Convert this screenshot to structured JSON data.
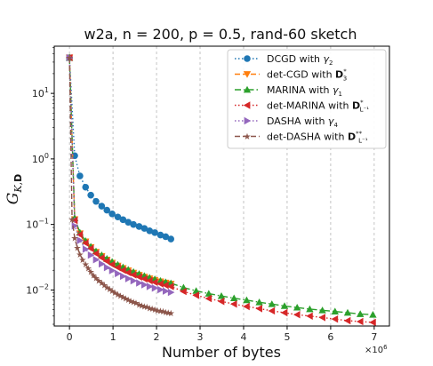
{
  "chart_data": {
    "type": "line",
    "title": "w2a, n = 200, p = 0.5, rand-60 sketch",
    "xlabel": "Number of bytes",
    "ylabel": "G_{K,D}",
    "x_multiplier_label": "×10^6",
    "x_range": [
      -0.35,
      7.35
    ],
    "y_range_log10": [
      -2.55,
      1.72
    ],
    "y_scale": "log",
    "grid": "vertical dashed at integer x",
    "x_ticks": [
      0,
      1,
      2,
      3,
      4,
      5,
      6,
      7
    ],
    "y_ticks": [
      {
        "value": 10,
        "label": "10^1"
      },
      {
        "value": 1,
        "label": "10^0"
      },
      {
        "value": 0.1,
        "label": "10^-1"
      },
      {
        "value": 0.01,
        "label": "10^-2"
      }
    ],
    "legend_position": "upper-right",
    "series": [
      {
        "name": "DCGD with γ2",
        "color": "#1f77b4",
        "linestyle": "dotted",
        "marker": "circle",
        "x": [
          0,
          0.12,
          0.24,
          0.37,
          0.49,
          0.61,
          0.74,
          0.86,
          0.98,
          1.11,
          1.23,
          1.35,
          1.47,
          1.6,
          1.72,
          1.84,
          1.96,
          2.09,
          2.21,
          2.33
        ],
        "y": [
          35,
          1.12,
          0.55,
          0.37,
          0.28,
          0.225,
          0.19,
          0.165,
          0.145,
          0.13,
          0.118,
          0.108,
          0.1,
          0.093,
          0.087,
          0.08,
          0.075,
          0.069,
          0.065,
          0.06
        ]
      },
      {
        "name": "det-CGD with D3*",
        "color": "#ff7f0e",
        "linestyle": "dashed",
        "marker": "triangle-down",
        "x": [
          0,
          0.12,
          0.24,
          0.37,
          0.49,
          0.61,
          0.74,
          0.86,
          0.98,
          1.11,
          1.23,
          1.35,
          1.47,
          1.6,
          1.72,
          1.84,
          1.96,
          2.09,
          2.21,
          2.33
        ],
        "y": [
          35,
          0.12,
          0.073,
          0.055,
          0.045,
          0.038,
          0.033,
          0.029,
          0.026,
          0.0235,
          0.0215,
          0.0198,
          0.0183,
          0.017,
          0.0159,
          0.015,
          0.0142,
          0.0135,
          0.0129,
          0.0124
        ]
      },
      {
        "name": "MARINA with γ1",
        "color": "#2ca02c",
        "linestyle": "dashdot",
        "marker": "triangle-up",
        "x": [
          0,
          0.12,
          0.24,
          0.37,
          0.49,
          0.61,
          0.74,
          0.86,
          0.98,
          1.11,
          1.23,
          1.35,
          1.47,
          1.6,
          1.72,
          1.84,
          1.96,
          2.09,
          2.21,
          2.33,
          2.62,
          2.91,
          3.2,
          3.49,
          3.78,
          4.07,
          4.36,
          4.65,
          4.94,
          5.23,
          5.52,
          5.81,
          6.1,
          6.39,
          6.68,
          6.97
        ],
        "y": [
          35,
          0.125,
          0.075,
          0.056,
          0.046,
          0.039,
          0.034,
          0.03,
          0.027,
          0.0243,
          0.0222,
          0.0204,
          0.0189,
          0.0176,
          0.0164,
          0.0154,
          0.0146,
          0.0138,
          0.0132,
          0.0127,
          0.0109,
          0.0097,
          0.0088,
          0.0081,
          0.0075,
          0.007,
          0.0065,
          0.0061,
          0.0057,
          0.0054,
          0.0051,
          0.0049,
          0.0047,
          0.0045,
          0.0043,
          0.0042
        ]
      },
      {
        "name": "det-MARINA with DL-1*",
        "color": "#d62728",
        "linestyle": "dotted",
        "marker": "triangle-left",
        "x": [
          0,
          0.12,
          0.24,
          0.37,
          0.49,
          0.61,
          0.74,
          0.86,
          0.98,
          1.11,
          1.23,
          1.35,
          1.47,
          1.6,
          1.72,
          1.84,
          1.96,
          2.09,
          2.21,
          2.33,
          2.62,
          2.91,
          3.2,
          3.49,
          3.78,
          4.07,
          4.36,
          4.65,
          4.94,
          5.23,
          5.52,
          5.81,
          6.1,
          6.39,
          6.68,
          6.97
        ],
        "y": [
          35,
          0.115,
          0.07,
          0.052,
          0.043,
          0.036,
          0.031,
          0.0275,
          0.0245,
          0.022,
          0.02,
          0.0184,
          0.017,
          0.0158,
          0.0148,
          0.0139,
          0.0131,
          0.0124,
          0.0118,
          0.0113,
          0.0095,
          0.0083,
          0.0074,
          0.0067,
          0.0061,
          0.0056,
          0.0052,
          0.0048,
          0.0045,
          0.0042,
          0.004,
          0.0038,
          0.0036,
          0.0034,
          0.0033,
          0.0032
        ]
      },
      {
        "name": "DASHA with γ4",
        "color": "#9467bd",
        "linestyle": "dotted",
        "marker": "triangle-right",
        "x": [
          0,
          0.12,
          0.24,
          0.37,
          0.49,
          0.61,
          0.74,
          0.86,
          0.98,
          1.11,
          1.23,
          1.35,
          1.47,
          1.6,
          1.72,
          1.84,
          1.96,
          2.09,
          2.21,
          2.33
        ],
        "y": [
          35,
          0.095,
          0.057,
          0.042,
          0.034,
          0.029,
          0.025,
          0.022,
          0.0198,
          0.0178,
          0.0162,
          0.0149,
          0.0138,
          0.0128,
          0.012,
          0.0113,
          0.0107,
          0.0101,
          0.0096,
          0.0092
        ]
      },
      {
        "name": "det-DASHA with DL-1**",
        "color": "#8c564b",
        "linestyle": "dashed",
        "marker": "star",
        "x": [
          0,
          0.06,
          0.12,
          0.18,
          0.24,
          0.3,
          0.37,
          0.43,
          0.49,
          0.55,
          0.61,
          0.67,
          0.74,
          0.8,
          0.86,
          0.92,
          0.98,
          1.04,
          1.11,
          1.17,
          1.23,
          1.29,
          1.35,
          1.41,
          1.47,
          1.53,
          1.6,
          1.66,
          1.72,
          1.78,
          1.84,
          1.9,
          1.96,
          2.02,
          2.09,
          2.15,
          2.21,
          2.27,
          2.33
        ],
        "y": [
          35,
          0.12,
          0.062,
          0.044,
          0.035,
          0.029,
          0.0245,
          0.0213,
          0.0188,
          0.0168,
          0.0152,
          0.0139,
          0.0128,
          0.0118,
          0.011,
          0.0103,
          0.0097,
          0.0091,
          0.0086,
          0.0082,
          0.0078,
          0.0074,
          0.0071,
          0.0068,
          0.0065,
          0.0063,
          0.006,
          0.0058,
          0.0056,
          0.0055,
          0.0053,
          0.0052,
          0.005,
          0.0049,
          0.0048,
          0.0047,
          0.0046,
          0.0045,
          0.0044
        ]
      }
    ]
  }
}
